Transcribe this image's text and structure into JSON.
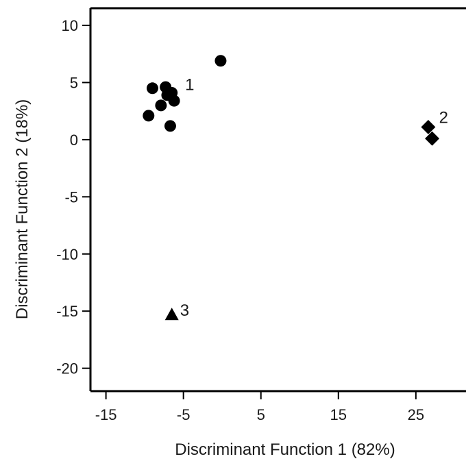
{
  "chart_data": {
    "type": "scatter",
    "title": "",
    "xlabel": "Discriminant Function 1 (82%)",
    "ylabel": "Discriminant Function 2 (18%)",
    "xlim": [
      -17,
      32
    ],
    "ylim": [
      -22,
      11.5
    ],
    "xticks": [
      -15,
      -5,
      5,
      15,
      25
    ],
    "yticks": [
      10,
      5,
      0,
      -5,
      -10,
      -15,
      -20
    ],
    "grid": false,
    "colors": {
      "points": "#000000",
      "axis": "#000000"
    },
    "series": [
      {
        "marker": "circle",
        "group_label": "1",
        "points": [
          {
            "x": -0.2,
            "y": 6.9
          },
          {
            "x": -9.0,
            "y": 4.5
          },
          {
            "x": -7.3,
            "y": 4.6
          },
          {
            "x": -6.5,
            "y": 4.1
          },
          {
            "x": -7.1,
            "y": 3.9
          },
          {
            "x": -6.2,
            "y": 3.4
          },
          {
            "x": -7.9,
            "y": 3.0
          },
          {
            "x": -9.5,
            "y": 2.1
          },
          {
            "x": -6.7,
            "y": 1.2
          }
        ]
      },
      {
        "marker": "diamond",
        "group_label": "2",
        "points": [
          {
            "x": 26.6,
            "y": 1.1
          },
          {
            "x": 27.1,
            "y": 0.1
          }
        ]
      },
      {
        "marker": "triangle",
        "group_label": "3",
        "points": [
          {
            "x": -6.5,
            "y": -15.3
          }
        ]
      }
    ]
  }
}
